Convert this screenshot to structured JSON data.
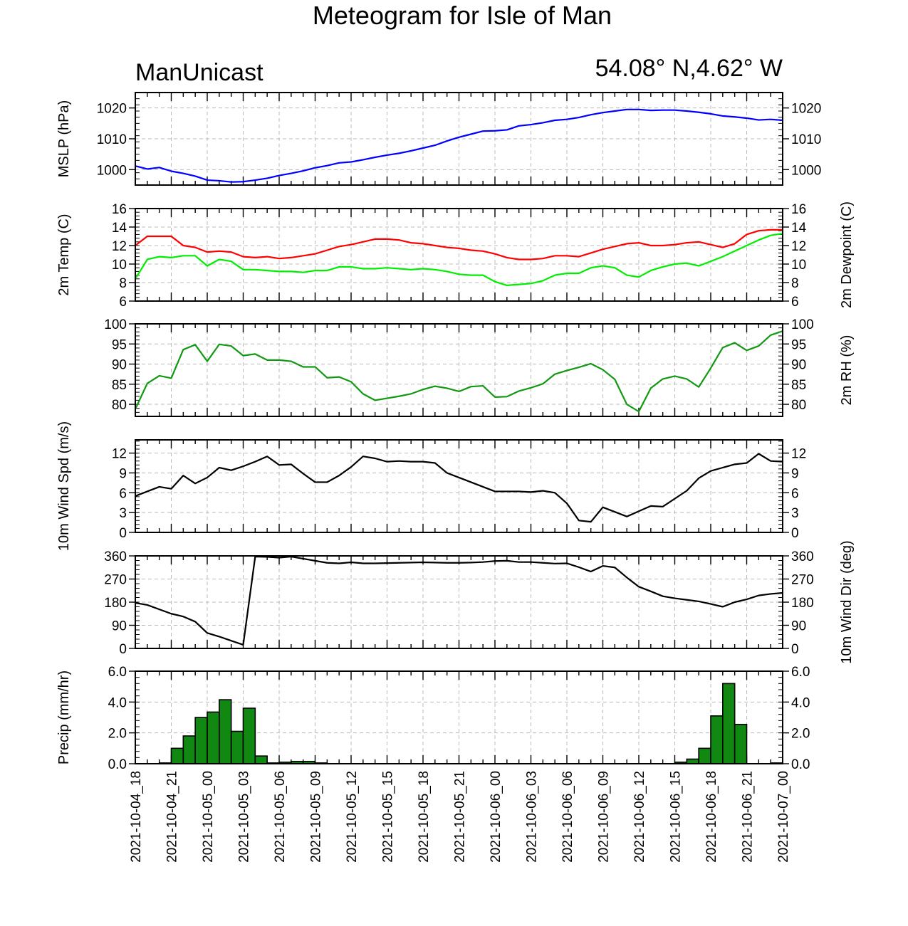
{
  "title": "Meteogram for Isle of Man",
  "subtitle_left": "ManUnicast",
  "subtitle_right": "54.08° N,4.62° W",
  "colors": {
    "pressure": "#0000ff",
    "temperature": "#ff0000",
    "dewpoint": "#00ee00",
    "rh": "#119911",
    "wind": "#000000",
    "precip_fill": "#118811",
    "grid": "#bbbbbb"
  },
  "chart_data": {
    "type": "line",
    "x": [
      "2021-10-04_18",
      "2021-10-04_19",
      "2021-10-04_20",
      "2021-10-04_21",
      "2021-10-04_22",
      "2021-10-04_23",
      "2021-10-05_00",
      "2021-10-05_01",
      "2021-10-05_02",
      "2021-10-05_03",
      "2021-10-05_04",
      "2021-10-05_05",
      "2021-10-05_06",
      "2021-10-05_07",
      "2021-10-05_08",
      "2021-10-05_09",
      "2021-10-05_10",
      "2021-10-05_11",
      "2021-10-05_12",
      "2021-10-05_13",
      "2021-10-05_14",
      "2021-10-05_15",
      "2021-10-05_16",
      "2021-10-05_17",
      "2021-10-05_18",
      "2021-10-05_19",
      "2021-10-05_20",
      "2021-10-05_21",
      "2021-10-05_22",
      "2021-10-05_23",
      "2021-10-06_00",
      "2021-10-06_01",
      "2021-10-06_02",
      "2021-10-06_03",
      "2021-10-06_04",
      "2021-10-06_05",
      "2021-10-06_06",
      "2021-10-06_07",
      "2021-10-06_08",
      "2021-10-06_09",
      "2021-10-06_10",
      "2021-10-06_11",
      "2021-10-06_12",
      "2021-10-06_13",
      "2021-10-06_14",
      "2021-10-06_15",
      "2021-10-06_16",
      "2021-10-06_17",
      "2021-10-06_18",
      "2021-10-06_19",
      "2021-10-06_20",
      "2021-10-06_21",
      "2021-10-06_22",
      "2021-10-06_23",
      "2021-10-07_00"
    ],
    "x_tick_labels": [
      "2021-10-04_18",
      "2021-10-04_21",
      "2021-10-05_00",
      "2021-10-05_03",
      "2021-10-05_06",
      "2021-10-05_09",
      "2021-10-05_12",
      "2021-10-05_15",
      "2021-10-05_18",
      "2021-10-05_21",
      "2021-10-06_00",
      "2021-10-06_03",
      "2021-10-06_06",
      "2021-10-06_09",
      "2021-10-06_12",
      "2021-10-06_15",
      "2021-10-06_18",
      "2021-10-06_21",
      "2021-10-07_00"
    ],
    "panels": [
      {
        "id": "mslp",
        "ylabel_left": "MSLP (hPa)",
        "ylabel_right": "",
        "ylim": [
          995,
          1025
        ],
        "yticks": [
          1000,
          1010,
          1020
        ],
        "ytick_labels": [
          "1000",
          "1010",
          "1020"
        ],
        "series": [
          {
            "values": [
              1001.2,
              1000.2,
              1000.7,
              999.5,
              998.8,
              997.9,
              996.6,
              996.4,
              996.0,
              996.1,
              996.6,
              997.2,
              998.1,
              998.8,
              999.6,
              1000.6,
              1001.3,
              1002.2,
              1002.5,
              1003.2,
              1004.0,
              1004.7,
              1005.3,
              1006.1,
              1007.0,
              1007.9,
              1009.3,
              1010.5,
              1011.5,
              1012.5,
              1012.6,
              1012.9,
              1014.2,
              1014.6,
              1015.2,
              1016.0,
              1016.3,
              1016.9,
              1017.8,
              1018.5,
              1019.0,
              1019.5,
              1019.5,
              1019.2,
              1019.3,
              1019.3,
              1019.0,
              1018.6,
              1018.1,
              1017.4,
              1017.1,
              1016.7,
              1016.1,
              1016.3,
              1016.0
            ],
            "color_key": "pressure"
          }
        ]
      },
      {
        "id": "temp",
        "ylabel_left": "2m Temp (C)",
        "ylabel_right": "2m Dewpoint (C)",
        "ylim": [
          6,
          16
        ],
        "yticks": [
          6,
          8,
          10,
          12,
          14,
          16
        ],
        "ytick_labels": [
          "6",
          "8",
          "10",
          "12",
          "14",
          "16"
        ],
        "series": [
          {
            "values": [
              12.0,
              13.0,
              13.0,
              13.0,
              12.0,
              11.8,
              11.3,
              11.4,
              11.3,
              10.8,
              10.7,
              10.8,
              10.6,
              10.7,
              10.9,
              11.1,
              11.5,
              11.9,
              12.1,
              12.4,
              12.7,
              12.7,
              12.6,
              12.3,
              12.2,
              12.0,
              11.8,
              11.7,
              11.5,
              11.4,
              11.1,
              10.7,
              10.5,
              10.5,
              10.6,
              10.9,
              10.9,
              10.8,
              11.2,
              11.6,
              11.9,
              12.2,
              12.3,
              12.0,
              12.0,
              12.1,
              12.3,
              12.4,
              12.1,
              11.8,
              12.2,
              13.2,
              13.6,
              13.7,
              13.7
            ],
            "color_key": "temperature"
          },
          {
            "values": [
              8.4,
              10.5,
              10.8,
              10.7,
              10.9,
              10.9,
              9.8,
              10.5,
              10.3,
              9.4,
              9.4,
              9.3,
              9.2,
              9.2,
              9.1,
              9.3,
              9.3,
              9.7,
              9.7,
              9.5,
              9.5,
              9.6,
              9.5,
              9.4,
              9.5,
              9.4,
              9.2,
              8.9,
              8.8,
              8.8,
              8.1,
              7.7,
              7.8,
              7.9,
              8.2,
              8.8,
              9.0,
              9.0,
              9.6,
              9.8,
              9.6,
              8.8,
              8.6,
              9.3,
              9.7,
              10.0,
              10.1,
              9.8,
              10.3,
              10.8,
              11.4,
              12.0,
              12.6,
              13.1,
              13.3
            ],
            "color_key": "dewpoint"
          }
        ]
      },
      {
        "id": "rh",
        "ylabel_left": "",
        "ylabel_right": "2m RH (%)",
        "ylim": [
          77,
          100
        ],
        "yticks": [
          80,
          85,
          90,
          95,
          100
        ],
        "ytick_labels": [
          "80",
          "85",
          "90",
          "95",
          "100"
        ],
        "series": [
          {
            "values": [
              78.8,
              85.2,
              87.1,
              86.5,
              93.6,
              94.8,
              90.7,
              94.9,
              94.5,
              92.1,
              92.5,
              91.0,
              91.0,
              90.7,
              89.3,
              89.3,
              86.6,
              86.8,
              85.6,
              82.6,
              81.0,
              81.5,
              82.0,
              82.6,
              83.7,
              84.5,
              84.0,
              83.2,
              84.4,
              84.6,
              81.8,
              81.9,
              83.3,
              84.1,
              85.1,
              87.5,
              88.4,
              89.2,
              90.1,
              88.6,
              86.2,
              80.0,
              78.2,
              84.0,
              86.3,
              87.0,
              86.3,
              84.3,
              89.0,
              94.1,
              95.3,
              93.4,
              94.5,
              97.2,
              98.2
            ],
            "color_key": "rh"
          }
        ]
      },
      {
        "id": "wspd",
        "ylabel_left": "10m Wind Spd (m/s)",
        "ylabel_right": "",
        "ylim": [
          0,
          14
        ],
        "yticks": [
          0,
          3,
          6,
          9,
          12
        ],
        "ytick_labels": [
          "0",
          "3",
          "6",
          "9",
          "12"
        ],
        "series": [
          {
            "values": [
              5.5,
              6.2,
              6.9,
              6.6,
              8.6,
              7.4,
              8.3,
              9.8,
              9.4,
              10.0,
              10.7,
              11.5,
              10.2,
              10.3,
              8.9,
              7.6,
              7.6,
              8.6,
              9.9,
              11.5,
              11.2,
              10.7,
              10.8,
              10.7,
              10.7,
              10.5,
              9.0,
              8.3,
              7.6,
              6.9,
              6.2,
              6.2,
              6.2,
              6.1,
              6.3,
              6.0,
              4.4,
              1.8,
              1.6,
              3.8,
              3.1,
              2.4,
              3.2,
              4.0,
              3.9,
              5.1,
              6.3,
              8.2,
              9.3,
              9.8,
              10.3,
              10.5,
              11.9,
              10.8,
              10.7
            ],
            "color_key": "wind"
          }
        ]
      },
      {
        "id": "wdir",
        "ylabel_left": "",
        "ylabel_right": "10m Wind Dir (deg)",
        "ylim": [
          0,
          360
        ],
        "yticks": [
          0,
          90,
          180,
          270,
          360
        ],
        "ytick_labels": [
          "0",
          "90",
          "180",
          "270",
          "360"
        ],
        "series": [
          {
            "values": [
              177,
              169,
              152,
              135,
              124,
              104,
              60,
              46,
              30,
              14,
              357,
              356,
              353,
              357,
              349,
              341,
              333,
              331,
              335,
              331,
              331,
              332,
              333,
              334,
              335,
              334,
              333,
              333,
              334,
              336,
              340,
              341,
              336,
              336,
              333,
              330,
              331,
              316,
              299,
              321,
              315,
              276,
              240,
              222,
              203,
              195,
              189,
              183,
              173,
              162,
              180,
              191,
              206,
              212,
              216
            ],
            "color_key": "wind"
          }
        ]
      },
      {
        "id": "precip",
        "type": "bar",
        "ylabel_left": "Precip (mm/hr)",
        "ylabel_right": "",
        "ylim": [
          0,
          6
        ],
        "yticks": [
          0,
          2,
          4,
          6
        ],
        "ytick_labels": [
          "0.0",
          "2.0",
          "4.0",
          "6.0"
        ],
        "series": [
          {
            "values": [
              0,
              0,
              0.05,
              1.0,
              1.8,
              3.0,
              3.35,
              4.15,
              2.1,
              3.6,
              0.5,
              0.05,
              0.1,
              0.15,
              0.15,
              0.05,
              0,
              0,
              0,
              0,
              0,
              0,
              0,
              0,
              0,
              0,
              0,
              0,
              0,
              0,
              0,
              0,
              0,
              0,
              0,
              0,
              0,
              0,
              0,
              0,
              0,
              0,
              0,
              0,
              0,
              0.1,
              0.3,
              1.0,
              3.1,
              5.2,
              2.55,
              0,
              0,
              0.05
            ],
            "color_key": "precip_fill"
          }
        ]
      }
    ]
  }
}
